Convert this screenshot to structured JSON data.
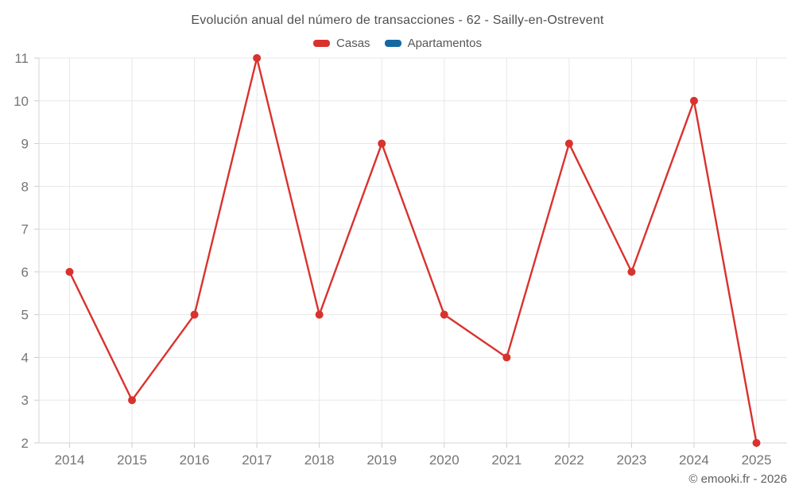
{
  "header": {
    "title": "Evolución anual del número de transacciones - 62 - Sailly-en-Ostrevent"
  },
  "legend": {
    "items": [
      {
        "label": "Casas",
        "color": "#d9322e"
      },
      {
        "label": "Apartamentos",
        "color": "#1269a2"
      }
    ]
  },
  "watermark": "© emooki.fr - 2026",
  "colors": {
    "grid": "#e8e8e8",
    "axis": "#d5d5d5",
    "tick": "#cccccc",
    "tick_label": "#757575",
    "background": "#ffffff"
  },
  "chart_data": {
    "type": "line",
    "title": "Evolución anual del número de transacciones - 62 - Sailly-en-Ostrevent",
    "x": [
      2014,
      2015,
      2016,
      2017,
      2018,
      2019,
      2020,
      2021,
      2022,
      2023,
      2024,
      2025
    ],
    "series": [
      {
        "name": "Casas",
        "color": "#d9322e",
        "values": [
          6,
          3,
          5,
          11,
          5,
          9,
          5,
          4,
          9,
          6,
          10,
          2
        ]
      },
      {
        "name": "Apartamentos",
        "color": "#1269a2",
        "values": []
      }
    ],
    "xlabel": "",
    "ylabel": "",
    "ylim": [
      2,
      11
    ],
    "y_ticks": [
      2,
      3,
      4,
      5,
      6,
      7,
      8,
      9,
      10,
      11
    ],
    "grid": true,
    "legend_position": "top",
    "marker_radius": 5,
    "line_width": 2.4
  }
}
